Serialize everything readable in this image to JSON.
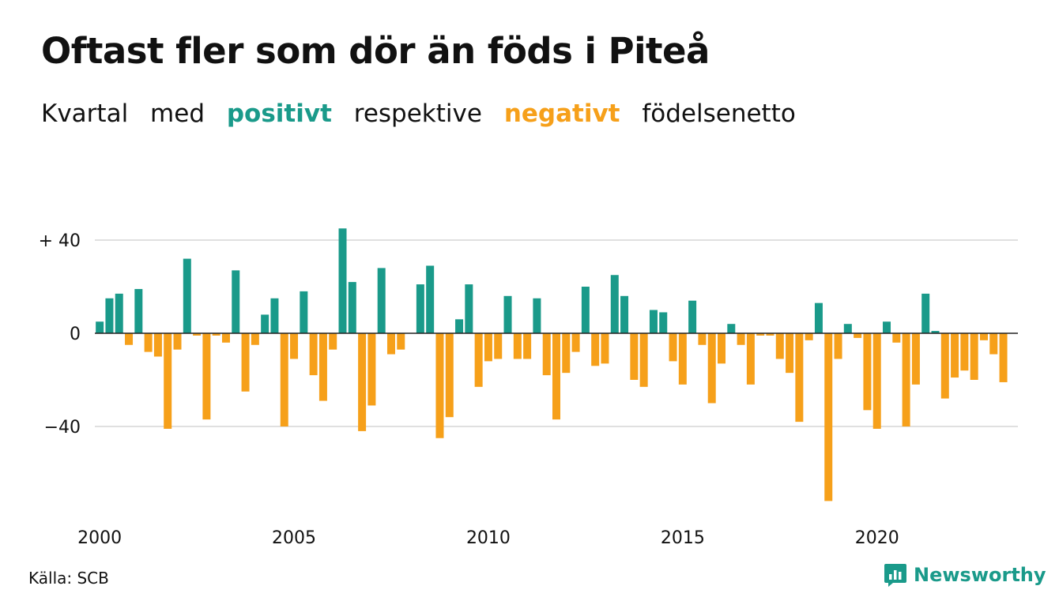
{
  "header": {
    "title": "Oftast fler som dör än föds i Piteå",
    "subtitle": {
      "part1": "Kvartal",
      "part2": "med",
      "positive": "positivt",
      "part3": "respektive",
      "negative": "negativt",
      "part4": "födelsenetto"
    }
  },
  "footer": {
    "source": "Källa: SCB",
    "brand": "Newsworthy"
  },
  "colors": {
    "positive": "#1a9a8a",
    "negative": "#f6a01a",
    "grid": "#e0e0e0",
    "zero_line": "#222222"
  },
  "chart_data": {
    "type": "bar",
    "title": "Oftast fler som dör än föds i Piteå",
    "subtitle": "Kvartal med positivt respektive negativt födelsenetto",
    "xlabel": "",
    "ylabel": "",
    "x_start": "2000 Q1",
    "x_ticks": [
      "2000",
      "2005",
      "2010",
      "2015",
      "2020"
    ],
    "y_ticks": [
      {
        "value": 40,
        "label": "+ 40"
      },
      {
        "value": 0,
        "label": "0"
      },
      {
        "value": -40,
        "label": "−40"
      }
    ],
    "ylim": [
      -72,
      45
    ],
    "grid": true,
    "values": [
      5,
      15,
      17,
      -5,
      19,
      -8,
      -10,
      -41,
      -7,
      32,
      -1,
      -37,
      -1,
      -4,
      27,
      -25,
      -5,
      8,
      15,
      -40,
      -11,
      18,
      -18,
      -29,
      -7,
      45,
      22,
      -42,
      -31,
      28,
      -9,
      -7,
      0,
      21,
      29,
      -45,
      -36,
      6,
      21,
      -23,
      -12,
      -11,
      16,
      -11,
      -11,
      15,
      -18,
      -37,
      -17,
      -8,
      20,
      -14,
      -13,
      25,
      16,
      -20,
      -23,
      10,
      9,
      -12,
      -22,
      14,
      -5,
      -30,
      -13,
      4,
      -5,
      -22,
      -1,
      -1,
      -11,
      -17,
      -38,
      -3,
      13,
      -72,
      -11,
      4,
      -2,
      -33,
      -41,
      5,
      -4,
      -40,
      -22,
      17,
      1,
      -28,
      -19,
      -16,
      -20,
      -3,
      -9,
      -21
    ]
  }
}
